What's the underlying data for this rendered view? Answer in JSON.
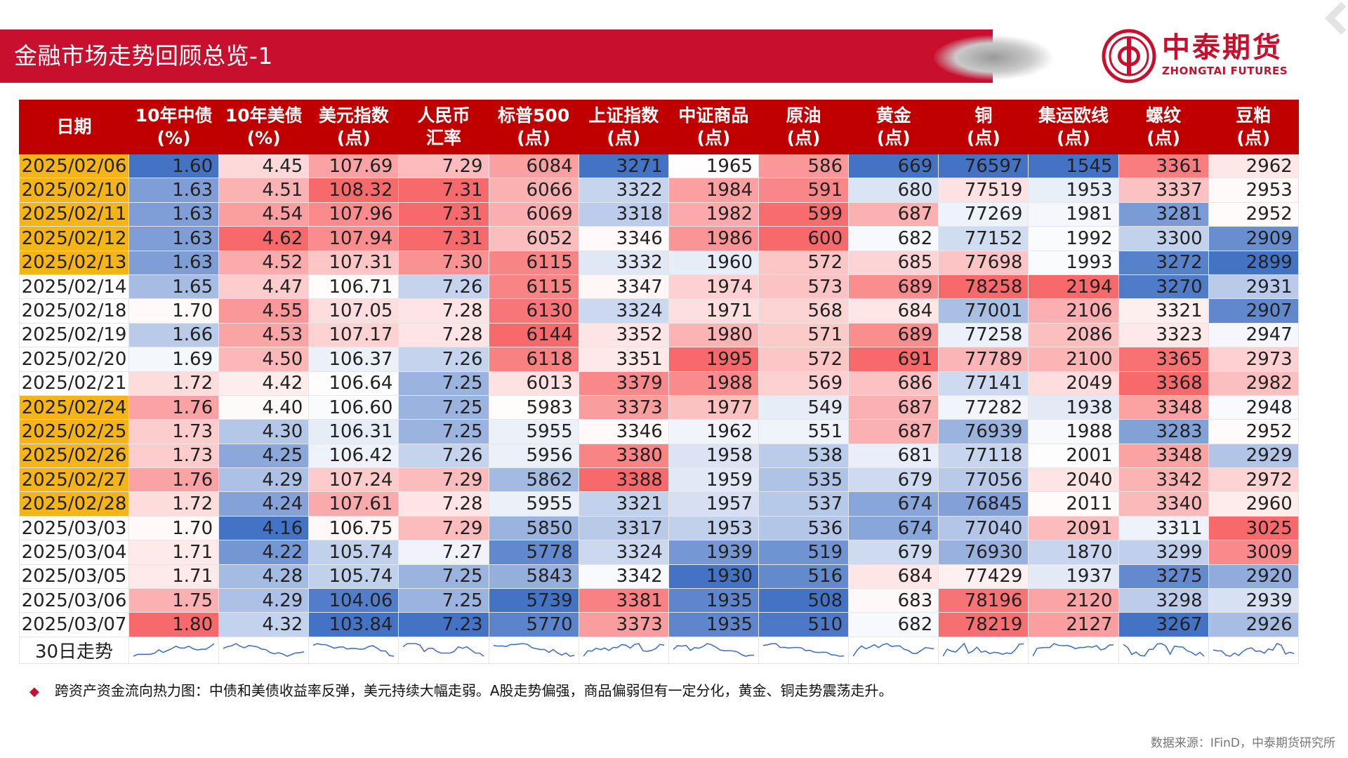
{
  "header": {
    "title": "金融市场走势回顾总览-1",
    "brand_cn": "中泰期货",
    "brand_en": "ZHONGTAI FUTURES",
    "brand_color": "#c8102e"
  },
  "table": {
    "columns": [
      {
        "line1": "日期",
        "line2": ""
      },
      {
        "line1": "10年中债",
        "line2": "(%)"
      },
      {
        "line1": "10年美债",
        "line2": "(%)"
      },
      {
        "line1": "美元指数",
        "line2": "(点)"
      },
      {
        "line1": "人民币",
        "line2": "汇率"
      },
      {
        "line1": "标普500",
        "line2": "(点)"
      },
      {
        "line1": "上证指数",
        "line2": "(点)"
      },
      {
        "line1": "中证商品",
        "line2": "(点)"
      },
      {
        "line1": "原油",
        "line2": "(点)"
      },
      {
        "line1": "黄金",
        "line2": "(点)"
      },
      {
        "line1": "铜",
        "line2": "(点)"
      },
      {
        "line1": "集运欧线",
        "line2": "(点)"
      },
      {
        "line1": "螺纹",
        "line2": "(点)"
      },
      {
        "line1": "豆粕",
        "line2": "(点)"
      }
    ],
    "highlight_color": "#f5b417",
    "rows": [
      {
        "date": "2025/02/06",
        "highlight": true,
        "values": [
          "1.60",
          "4.45",
          "107.69",
          "7.29",
          "6084",
          "3271",
          "1965",
          "586",
          "669",
          "76597",
          "1545",
          "3361",
          "2962"
        ]
      },
      {
        "date": "2025/02/10",
        "highlight": true,
        "values": [
          "1.63",
          "4.51",
          "108.32",
          "7.31",
          "6066",
          "3322",
          "1984",
          "591",
          "680",
          "77519",
          "1953",
          "3337",
          "2953"
        ]
      },
      {
        "date": "2025/02/11",
        "highlight": true,
        "values": [
          "1.63",
          "4.54",
          "107.96",
          "7.31",
          "6069",
          "3318",
          "1982",
          "599",
          "687",
          "77269",
          "1981",
          "3281",
          "2952"
        ]
      },
      {
        "date": "2025/02/12",
        "highlight": true,
        "values": [
          "1.63",
          "4.62",
          "107.94",
          "7.31",
          "6052",
          "3346",
          "1986",
          "600",
          "682",
          "77152",
          "1992",
          "3300",
          "2909"
        ]
      },
      {
        "date": "2025/02/13",
        "highlight": true,
        "values": [
          "1.63",
          "4.52",
          "107.31",
          "7.30",
          "6115",
          "3332",
          "1960",
          "572",
          "685",
          "77698",
          "1993",
          "3272",
          "2899"
        ]
      },
      {
        "date": "2025/02/14",
        "highlight": false,
        "values": [
          "1.65",
          "4.47",
          "106.71",
          "7.26",
          "6115",
          "3347",
          "1974",
          "573",
          "689",
          "78258",
          "2194",
          "3270",
          "2931"
        ]
      },
      {
        "date": "2025/02/18",
        "highlight": false,
        "values": [
          "1.70",
          "4.55",
          "107.05",
          "7.28",
          "6130",
          "3324",
          "1971",
          "568",
          "684",
          "77001",
          "2106",
          "3321",
          "2907"
        ]
      },
      {
        "date": "2025/02/19",
        "highlight": false,
        "values": [
          "1.66",
          "4.53",
          "107.17",
          "7.28",
          "6144",
          "3352",
          "1980",
          "571",
          "689",
          "77258",
          "2086",
          "3323",
          "2947"
        ]
      },
      {
        "date": "2025/02/20",
        "highlight": false,
        "values": [
          "1.69",
          "4.50",
          "106.37",
          "7.26",
          "6118",
          "3351",
          "1995",
          "572",
          "691",
          "77789",
          "2100",
          "3365",
          "2973"
        ]
      },
      {
        "date": "2025/02/21",
        "highlight": false,
        "values": [
          "1.72",
          "4.42",
          "106.64",
          "7.25",
          "6013",
          "3379",
          "1988",
          "569",
          "686",
          "77141",
          "2049",
          "3368",
          "2982"
        ]
      },
      {
        "date": "2025/02/24",
        "highlight": true,
        "values": [
          "1.76",
          "4.40",
          "106.60",
          "7.25",
          "5983",
          "3373",
          "1977",
          "549",
          "687",
          "77282",
          "1938",
          "3348",
          "2948"
        ]
      },
      {
        "date": "2025/02/25",
        "highlight": true,
        "values": [
          "1.73",
          "4.30",
          "106.31",
          "7.25",
          "5955",
          "3346",
          "1962",
          "551",
          "687",
          "76939",
          "1988",
          "3283",
          "2952"
        ]
      },
      {
        "date": "2025/02/26",
        "highlight": true,
        "values": [
          "1.73",
          "4.25",
          "106.42",
          "7.26",
          "5956",
          "3380",
          "1958",
          "538",
          "681",
          "77118",
          "2001",
          "3348",
          "2929"
        ]
      },
      {
        "date": "2025/02/27",
        "highlight": true,
        "values": [
          "1.76",
          "4.29",
          "107.24",
          "7.29",
          "5862",
          "3388",
          "1959",
          "535",
          "679",
          "77056",
          "2040",
          "3342",
          "2972"
        ]
      },
      {
        "date": "2025/02/28",
        "highlight": true,
        "values": [
          "1.72",
          "4.24",
          "107.61",
          "7.28",
          "5955",
          "3321",
          "1957",
          "537",
          "674",
          "76845",
          "2011",
          "3340",
          "2960"
        ]
      },
      {
        "date": "2025/03/03",
        "highlight": false,
        "values": [
          "1.70",
          "4.16",
          "106.75",
          "7.29",
          "5850",
          "3317",
          "1953",
          "536",
          "674",
          "77040",
          "2091",
          "3311",
          "3025"
        ]
      },
      {
        "date": "2025/03/04",
        "highlight": false,
        "values": [
          "1.71",
          "4.22",
          "105.74",
          "7.27",
          "5778",
          "3324",
          "1939",
          "519",
          "679",
          "76930",
          "1870",
          "3299",
          "3009"
        ]
      },
      {
        "date": "2025/03/05",
        "highlight": false,
        "values": [
          "1.71",
          "4.28",
          "105.74",
          "7.25",
          "5843",
          "3342",
          "1930",
          "516",
          "684",
          "77429",
          "1937",
          "3275",
          "2920"
        ]
      },
      {
        "date": "2025/03/06",
        "highlight": false,
        "values": [
          "1.75",
          "4.29",
          "104.06",
          "7.25",
          "5739",
          "3381",
          "1935",
          "508",
          "683",
          "78196",
          "2120",
          "3298",
          "2939"
        ]
      },
      {
        "date": "2025/03/07",
        "highlight": false,
        "values": [
          "1.80",
          "4.32",
          "103.84",
          "7.23",
          "5770",
          "3373",
          "1935",
          "510",
          "682",
          "78219",
          "2127",
          "3267",
          "2926"
        ]
      }
    ],
    "trend_label": "30日走势",
    "heat_colors": {
      "low": "#4472c4",
      "mid": "#ffffff",
      "high": "#f8696b"
    },
    "spark_color": "#4472c4"
  },
  "note": "跨资产资金流向热力图：中债和美债收益率反弹，美元持续大幅走弱。A股走势偏强，商品偏弱但有一定分化，黄金、铜走势震荡走升。",
  "source": "数据来源：IFinD，中泰期货研究所"
}
